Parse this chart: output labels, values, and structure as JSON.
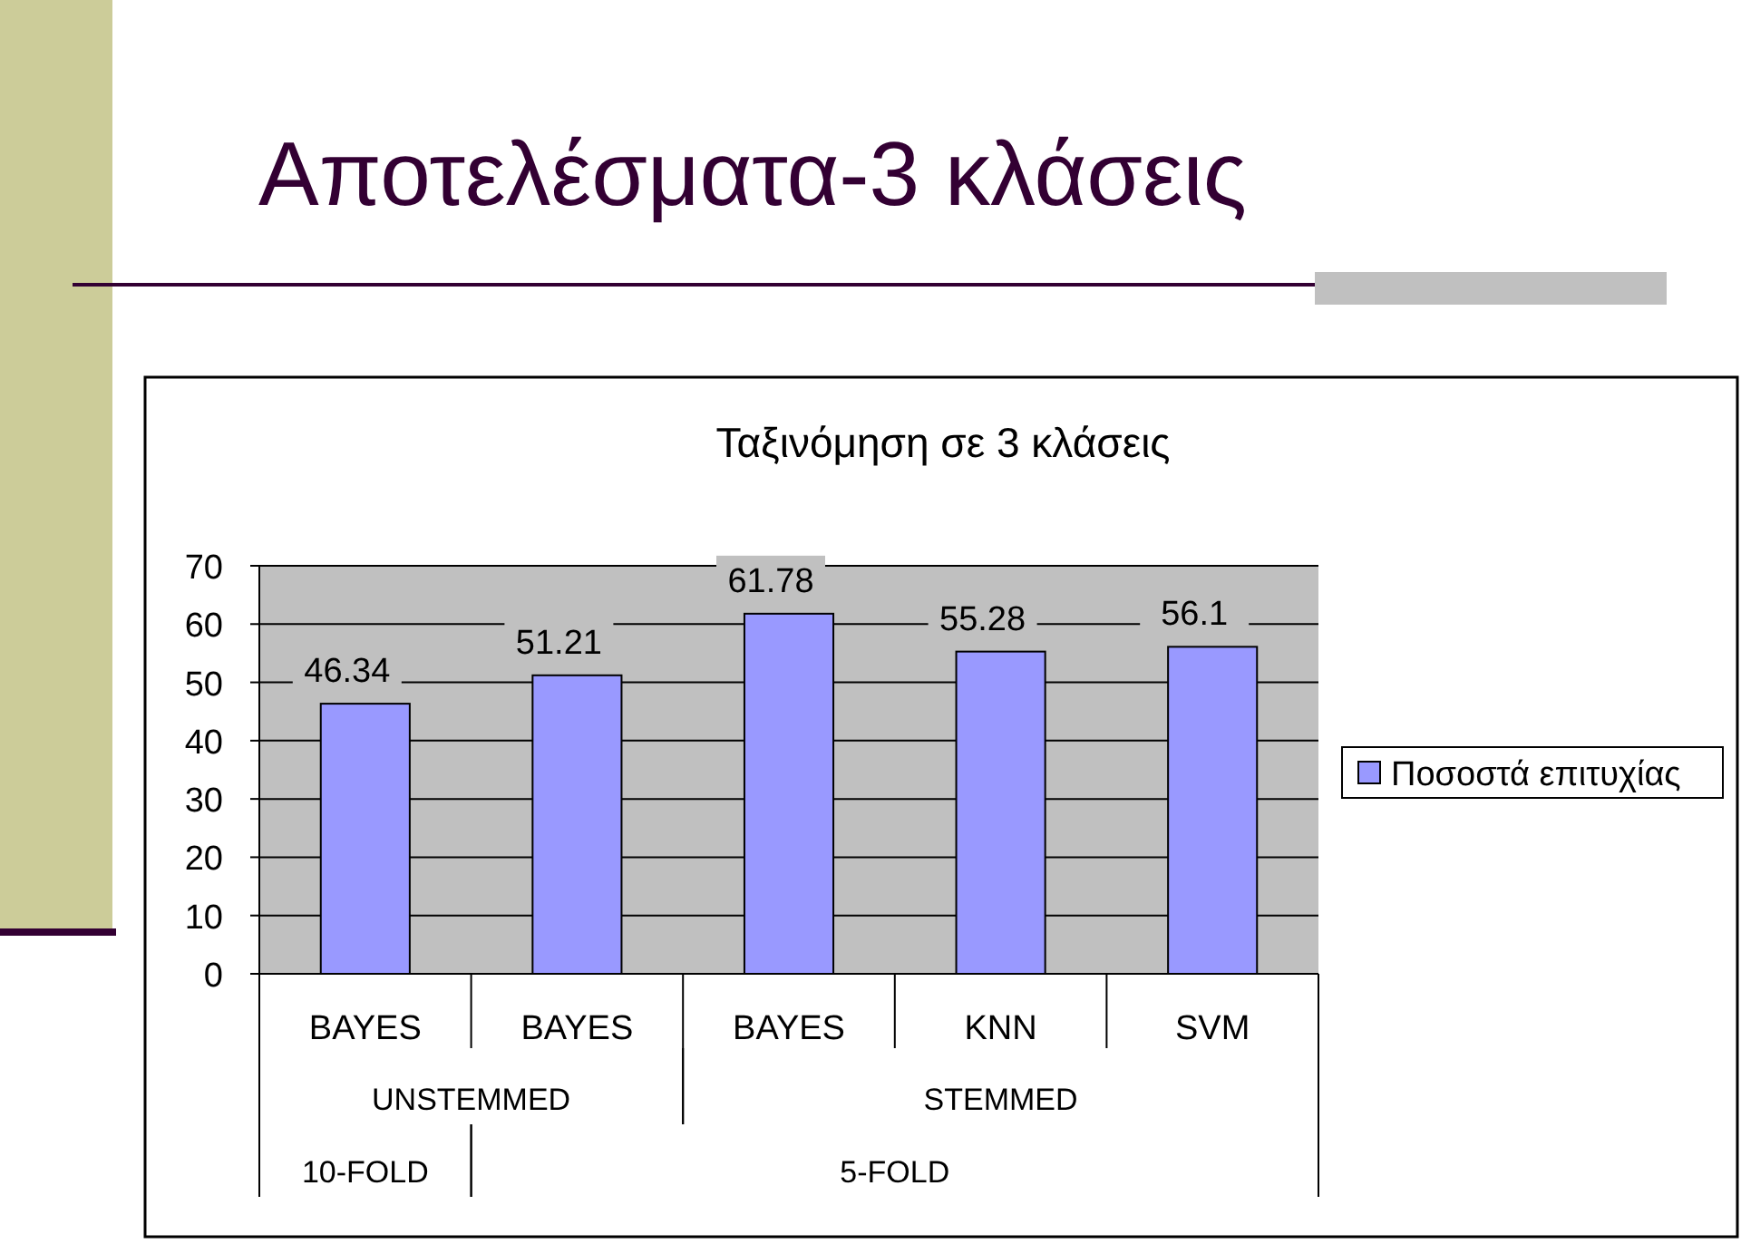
{
  "chart_data": {
    "type": "bar",
    "title": "Αποτελέσματα-3 κλάσεις",
    "subtitle": "Ταξινόμηση σε 3 κλάσεις",
    "categories": [
      "BAYES",
      "BAYES",
      "BAYES",
      "KNN",
      "SVM"
    ],
    "series": [
      {
        "name": "Ποσοστά επιτυχίας",
        "color": "#9999ff",
        "values": [
          46.34,
          51.21,
          61.78,
          55.28,
          56.1
        ]
      }
    ],
    "annotations": [
      "UNSTEMMED",
      "STEMMED",
      "10-FOLD",
      "5-FOLD"
    ],
    "ylim": [
      0,
      70
    ],
    "yticks": [
      0,
      10,
      20,
      30,
      40,
      50,
      60,
      70
    ],
    "grid": "y",
    "legend": "right",
    "data_labels": true
  }
}
